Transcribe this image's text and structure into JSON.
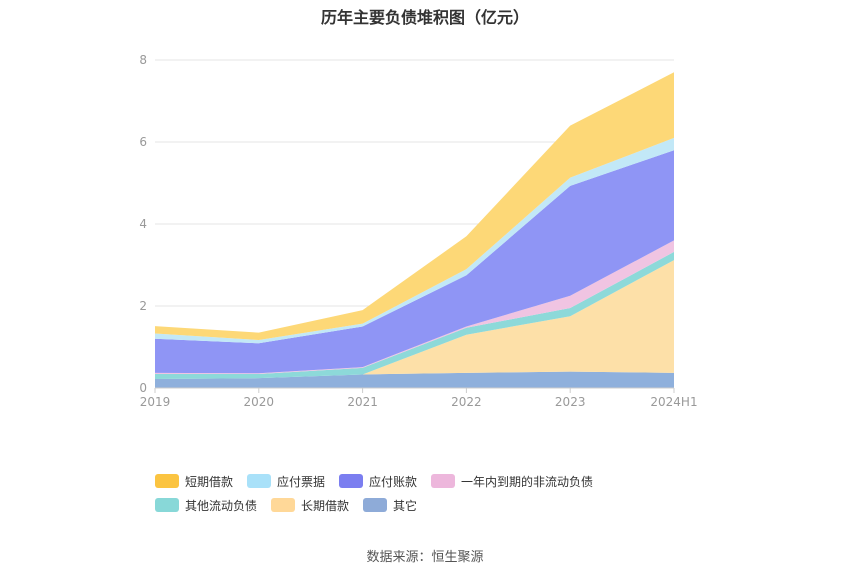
{
  "chart_data": {
    "type": "area",
    "stacked": true,
    "title": "历年主要负债堆积图（亿元）",
    "categories": [
      "2019",
      "2020",
      "2021",
      "2022",
      "2023",
      "2024H1"
    ],
    "ylim": [
      0,
      8
    ],
    "yticks": [
      0,
      2,
      4,
      6,
      8
    ],
    "ytick_labels": [
      "0",
      "2",
      "4",
      "6",
      "8"
    ],
    "series": [
      {
        "name": "其它",
        "color": "#8fb0dc",
        "values": [
          0.22,
          0.24,
          0.33,
          0.37,
          0.4,
          0.37
        ]
      },
      {
        "name": "长期借款",
        "color": "#fde0a8",
        "values": [
          0.0,
          0.0,
          0.0,
          0.93,
          1.35,
          2.75
        ]
      },
      {
        "name": "其他流动负债",
        "color": "#8dd9d9",
        "values": [
          0.12,
          0.1,
          0.16,
          0.17,
          0.2,
          0.2
        ]
      },
      {
        "name": "一年内到期的非流动负债",
        "color": "#f0c4e2",
        "values": [
          0.03,
          0.02,
          0.02,
          0.03,
          0.3,
          0.28
        ]
      },
      {
        "name": "应付账款",
        "color": "#8f95f5",
        "values": [
          0.83,
          0.73,
          0.99,
          1.25,
          2.68,
          2.2
        ]
      },
      {
        "name": "应付票据",
        "color": "#c2e8f7",
        "values": [
          0.13,
          0.08,
          0.07,
          0.15,
          0.2,
          0.3
        ]
      },
      {
        "name": "短期借款",
        "color": "#fdd877",
        "values": [
          0.18,
          0.18,
          0.33,
          0.8,
          1.27,
          1.6
        ]
      }
    ],
    "legend_position": "bottom",
    "legend_items": [
      {
        "name": "短期借款",
        "color": "#fbc441"
      },
      {
        "name": "应付票据",
        "color": "#a9e1f9"
      },
      {
        "name": "应付账款",
        "color": "#7b7ef0"
      },
      {
        "name": "一年内到期的非流动负债",
        "color": "#edb7dc"
      },
      {
        "name": "其他流动负债",
        "color": "#88d8d8"
      },
      {
        "name": "长期借款",
        "color": "#ffd898"
      },
      {
        "name": "其它",
        "color": "#8eabd8"
      }
    ],
    "source": "数据来源：恒生聚源"
  }
}
